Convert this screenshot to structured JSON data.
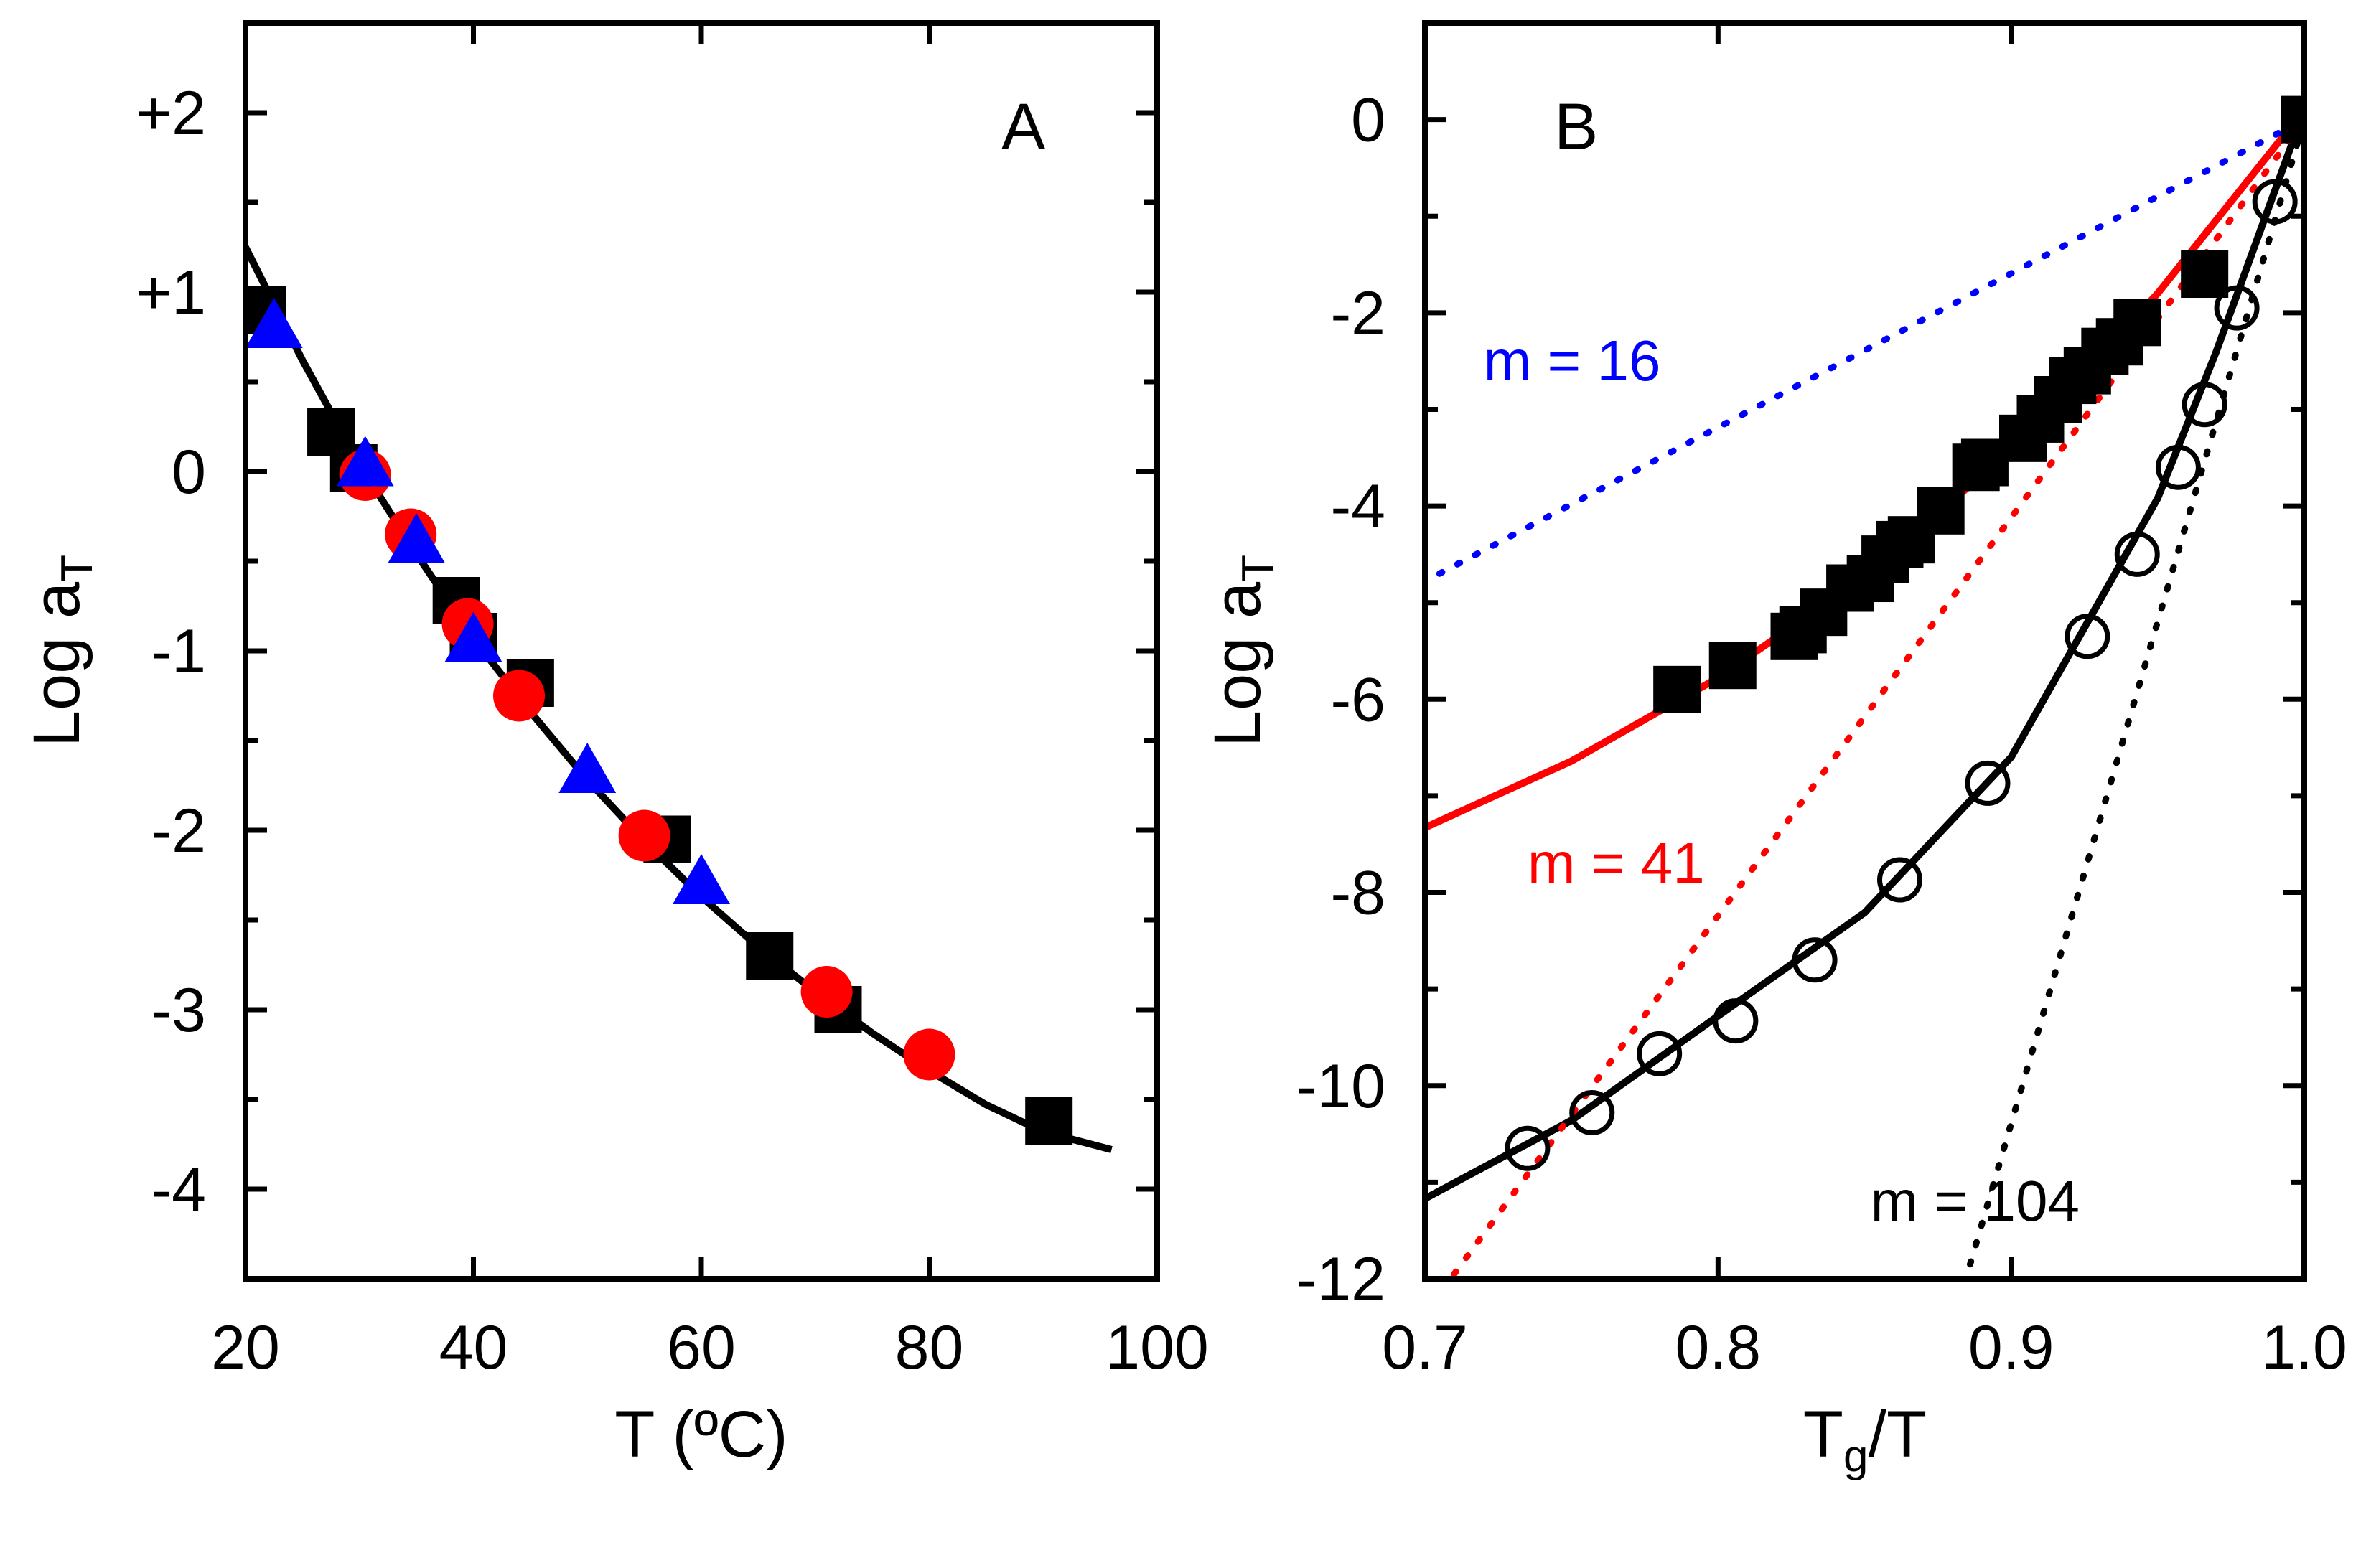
{
  "chart_data": [
    {
      "panel_label": "A",
      "type": "scatter",
      "xlabel": "T (ºC)",
      "ylabel": {
        "main": "Log a",
        "sub": "T"
      },
      "xlim": [
        20,
        100
      ],
      "ylim": [
        -4.5,
        2.5
      ],
      "x_ticks": [
        20,
        40,
        60,
        80,
        100
      ],
      "y_ticks": [
        {
          "value": 2,
          "label": "+2"
        },
        {
          "value": 1,
          "label": "+1"
        },
        {
          "value": 0,
          "label": "0"
        },
        {
          "value": -1,
          "label": "-1"
        },
        {
          "value": -2,
          "label": "-2"
        },
        {
          "value": -3,
          "label": "-3"
        },
        {
          "value": -4,
          "label": "-4"
        }
      ],
      "series": [
        {
          "marker": "square",
          "color": "#000000",
          "points": [
            [
              21.5,
              0.9
            ],
            [
              27.5,
              0.22
            ],
            [
              29.5,
              0.02
            ],
            [
              38.5,
              -0.72
            ],
            [
              40,
              -0.92
            ],
            [
              45,
              -1.18
            ],
            [
              57,
              -2.05
            ],
            [
              66,
              -2.7
            ],
            [
              72,
              -3.0
            ],
            [
              90.5,
              -3.62
            ]
          ]
        },
        {
          "marker": "circle",
          "color": "#ff0000",
          "points": [
            [
              30.5,
              -0.02
            ],
            [
              34.5,
              -0.35
            ],
            [
              39.5,
              -0.85
            ],
            [
              44,
              -1.25
            ],
            [
              55,
              -2.03
            ],
            [
              71,
              -2.9
            ],
            [
              80,
              -3.25
            ]
          ]
        },
        {
          "marker": "triangle",
          "color": "#0000ff",
          "points": [
            [
              22.5,
              0.8
            ],
            [
              30.5,
              0.03
            ],
            [
              35,
              -0.4
            ],
            [
              40,
              -0.95
            ],
            [
              50,
              -1.68
            ],
            [
              60,
              -2.3
            ]
          ]
        },
        {
          "marker": "line",
          "color": "#000000",
          "points": [
            [
              20,
              1.25
            ],
            [
              25,
              0.62
            ],
            [
              30,
              0.04
            ],
            [
              35,
              -0.46
            ],
            [
              40,
              -0.93
            ],
            [
              45,
              -1.34
            ],
            [
              50,
              -1.72
            ],
            [
              55,
              -2.06
            ],
            [
              60,
              -2.37
            ],
            [
              65,
              -2.65
            ],
            [
              70,
              -2.9
            ],
            [
              75,
              -3.13
            ],
            [
              80,
              -3.34
            ],
            [
              85,
              -3.53
            ],
            [
              90,
              -3.68
            ],
            [
              96,
              -3.78
            ]
          ]
        }
      ]
    },
    {
      "panel_label": "B",
      "type": "scatter",
      "xlabel": {
        "main": "T",
        "sub": "g",
        "tail": "/T"
      },
      "ylabel": {
        "main": "Log a",
        "sub": "T"
      },
      "xlim": [
        0.7,
        1.0
      ],
      "ylim": [
        -12,
        1
      ],
      "x_ticks": [
        {
          "value": 0.7,
          "label": "0.7"
        },
        {
          "value": 0.8,
          "label": "0.8"
        },
        {
          "value": 0.9,
          "label": "0.9"
        },
        {
          "value": 1.0,
          "label": "1.0"
        }
      ],
      "y_ticks": [
        0,
        -2,
        -4,
        -6,
        -8,
        -10,
        -12
      ],
      "annotations": [
        {
          "text": "m = 16",
          "color": "#0000ff",
          "x": 0.72,
          "y": -2.7
        },
        {
          "text": "m = 41",
          "color": "#ff0000",
          "x": 0.735,
          "y": -7.9
        },
        {
          "text": "m = 104",
          "color": "#000000",
          "x": 0.852,
          "y": -11.4
        }
      ],
      "series": [
        {
          "marker": "square",
          "color": "#000000",
          "points": [
            [
              0.786,
              -5.9
            ],
            [
              0.805,
              -5.65
            ],
            [
              0.826,
              -5.35
            ],
            [
              0.829,
              -5.28
            ],
            [
              0.836,
              -5.1
            ],
            [
              0.845,
              -4.85
            ],
            [
              0.852,
              -4.75
            ],
            [
              0.857,
              -4.55
            ],
            [
              0.862,
              -4.4
            ],
            [
              0.866,
              -4.35
            ],
            [
              0.876,
              -4.05
            ],
            [
              0.888,
              -3.6
            ],
            [
              0.891,
              -3.55
            ],
            [
              0.904,
              -3.3
            ],
            [
              0.91,
              -3.1
            ],
            [
              0.916,
              -2.9
            ],
            [
              0.921,
              -2.7
            ],
            [
              0.926,
              -2.6
            ],
            [
              0.932,
              -2.4
            ],
            [
              0.937,
              -2.3
            ],
            [
              0.943,
              -2.1
            ],
            [
              0.966,
              -1.6
            ],
            [
              1.0,
              0.0
            ]
          ]
        },
        {
          "marker": "open-circle",
          "color": "#000000",
          "points": [
            [
              0.735,
              -10.65
            ],
            [
              0.757,
              -10.28
            ],
            [
              0.78,
              -9.67
            ],
            [
              0.806,
              -9.33
            ],
            [
              0.833,
              -8.7
            ],
            [
              0.862,
              -7.87
            ],
            [
              0.892,
              -6.87
            ],
            [
              0.926,
              -5.35
            ],
            [
              0.943,
              -4.5
            ],
            [
              0.957,
              -3.6
            ],
            [
              0.966,
              -2.95
            ],
            [
              0.977,
              -1.95
            ],
            [
              0.99,
              -0.85
            ]
          ]
        },
        {
          "marker": "line",
          "color": "#ff0000",
          "points": [
            [
              0.7,
              -7.33
            ],
            [
              0.75,
              -6.64
            ],
            [
              0.8,
              -5.78
            ],
            [
              0.85,
              -4.73
            ],
            [
              0.9,
              -3.42
            ],
            [
              0.95,
              -1.8
            ],
            [
              1.0,
              0.1
            ]
          ]
        },
        {
          "marker": "line",
          "color": "#000000",
          "points": [
            [
              0.7,
              -11.17
            ],
            [
              0.75,
              -10.36
            ],
            [
              0.8,
              -9.28
            ],
            [
              0.85,
              -8.21
            ],
            [
              0.9,
              -6.6
            ],
            [
              0.95,
              -3.92
            ],
            [
              0.97,
              -2.4
            ],
            [
              1.0,
              0.1
            ]
          ]
        },
        {
          "marker": "dotted",
          "color": "#0000ff",
          "points": [
            [
              0.705,
              -4.7
            ],
            [
              1.0,
              0.0
            ]
          ]
        },
        {
          "marker": "dotted",
          "color": "#ff0000",
          "points": [
            [
              0.71,
              -11.95
            ],
            [
              1.0,
              0.0
            ]
          ]
        },
        {
          "marker": "dotted",
          "color": "#000000",
          "points": [
            [
              0.886,
              -11.85
            ],
            [
              1.0,
              0.0
            ]
          ]
        }
      ]
    }
  ]
}
